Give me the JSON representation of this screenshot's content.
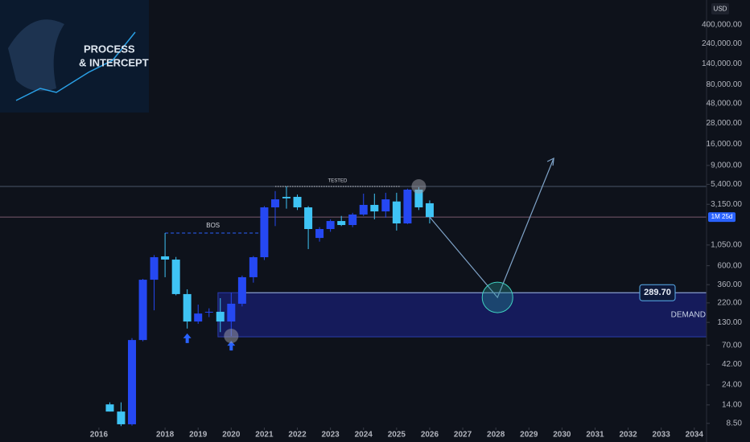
{
  "chart_data": {
    "type": "candlestick",
    "logo": {
      "line1": "PROCESS",
      "line2": "& INTERCEPT"
    },
    "currency": "USD",
    "log_scale": true,
    "up_color": "#2548f2",
    "down_color": "#3fc4f5",
    "x": [
      2016.33,
      2016.67,
      2017,
      2017.33,
      2017.67,
      2018,
      2018.33,
      2018.67,
      2019,
      2019.33,
      2019.67,
      2020,
      2020.33,
      2020.67,
      2021,
      2021.33,
      2021.67,
      2022,
      2022.33,
      2022.67,
      2023,
      2023.33,
      2023.67,
      2024,
      2024.33,
      2024.67,
      2025,
      2025.33,
      2025.67,
      2026
    ],
    "open": [
      14.2,
      11.7,
      8.3,
      80.7,
      411,
      773,
      708,
      279,
      133,
      170,
      173,
      133,
      215,
      440,
      755,
      2900,
      3850,
      3850,
      2900,
      1270,
      1615,
      2005,
      1800,
      2390,
      3100,
      2600,
      3400,
      1880,
      4680,
      3240
    ],
    "high": [
      15,
      15,
      85,
      420,
      800,
      1450,
      760,
      317,
      210,
      190,
      250,
      290,
      460,
      780,
      3000,
      4500,
      5100,
      4100,
      3000,
      1700,
      2100,
      2300,
      2500,
      4200,
      4200,
      4300,
      4300,
      4800,
      5000,
      3500
    ],
    "low": [
      11.7,
      7.9,
      8,
      78,
      180,
      440,
      270,
      110,
      125,
      150,
      100,
      90,
      200,
      380,
      700,
      1750,
      2800,
      2700,
      940,
      1150,
      1500,
      1750,
      1700,
      2300,
      2100,
      2200,
      1550,
      1850,
      2700,
      1880
    ],
    "close": [
      11.7,
      8.3,
      80.7,
      411,
      755,
      708,
      279,
      133,
      165,
      173,
      133,
      215,
      440,
      755,
      2900,
      3600,
      3700,
      2900,
      1615,
      1615,
      2005,
      1800,
      2390,
      3100,
      2600,
      3600,
      1880,
      4680,
      2900,
      2230
    ],
    "xlim": [
      2013.01,
      2034.37
    ],
    "xticks": [
      2016,
      2018,
      2019,
      2020,
      2021,
      2022,
      2023,
      2024,
      2025,
      2026,
      2027,
      2028,
      2029,
      2030,
      2031,
      2032,
      2033,
      2034
    ],
    "ylim": [
      7.6,
      783000
    ],
    "yticks": [
      {
        "value": 400000,
        "label": "400,000.00"
      },
      {
        "value": 240000,
        "label": "240,000.00"
      },
      {
        "value": 140000,
        "label": "140,000.00"
      },
      {
        "value": 80000,
        "label": "80,000.00"
      },
      {
        "value": 48000,
        "label": "48,000.00"
      },
      {
        "value": 28000,
        "label": "28,000.00"
      },
      {
        "value": 16000,
        "label": "16,000.00"
      },
      {
        "value": 9000,
        "label": "9,000.00"
      },
      {
        "value": 5400,
        "label": "5,400.00"
      },
      {
        "value": 3150,
        "label": "3,150.00"
      },
      {
        "value": 1050,
        "label": "1,050.00"
      },
      {
        "value": 600,
        "label": "600.00"
      },
      {
        "value": 360,
        "label": "360.00"
      },
      {
        "value": 220,
        "label": "220.00"
      },
      {
        "value": 130,
        "label": "130.00"
      },
      {
        "value": 70,
        "label": "70.00"
      },
      {
        "value": 42,
        "label": "42.00"
      },
      {
        "value": 24,
        "label": "24.00"
      },
      {
        "value": 14,
        "label": "14.00"
      },
      {
        "value": 8.5,
        "label": "8.50"
      }
    ],
    "bos": {
      "label": "BOS",
      "value": 1450,
      "x": [
        2018,
        2020.9
      ]
    },
    "tested": {
      "label": "TESTED",
      "value": 5100,
      "x": [
        2021.33,
        2025.1
      ]
    },
    "demand": {
      "label": "DEMAND",
      "top": 289.7,
      "top_label": "289.70",
      "bottom": 88,
      "x_start": 2019.6
    },
    "last_price": {
      "value": 2230,
      "label": "1M 25d"
    },
    "projection": {
      "x": [
        2026,
        2028.05,
        2029.75
      ],
      "y": [
        2230,
        255,
        10900
      ]
    }
  }
}
